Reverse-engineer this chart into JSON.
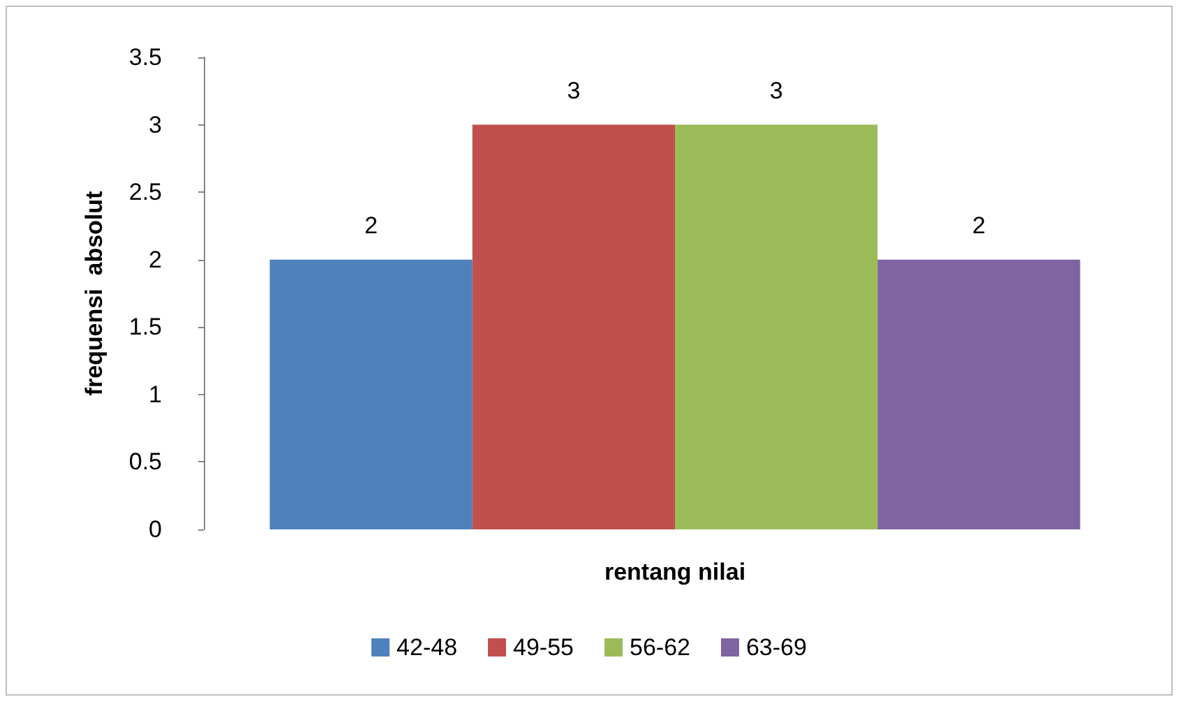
{
  "chart_data": {
    "type": "bar",
    "xlabel": "rentang nilai",
    "ylabel": "frequensi  absolut",
    "categories": [
      null
    ],
    "series": [
      {
        "name": "42-48",
        "color": "#4f81bd",
        "values": [
          2
        ]
      },
      {
        "name": "49-55",
        "color": "#c0504d",
        "values": [
          3
        ]
      },
      {
        "name": "56-62",
        "color": "#9bbb59",
        "values": [
          3
        ]
      },
      {
        "name": "63-69",
        "color": "#8064a2",
        "values": [
          2
        ]
      }
    ],
    "ylim": [
      0,
      3.5
    ],
    "yticks": [
      0,
      0.5,
      1,
      1.5,
      2,
      2.5,
      3,
      3.5
    ],
    "data_labels": true,
    "legend": "bottom",
    "grid": false
  }
}
